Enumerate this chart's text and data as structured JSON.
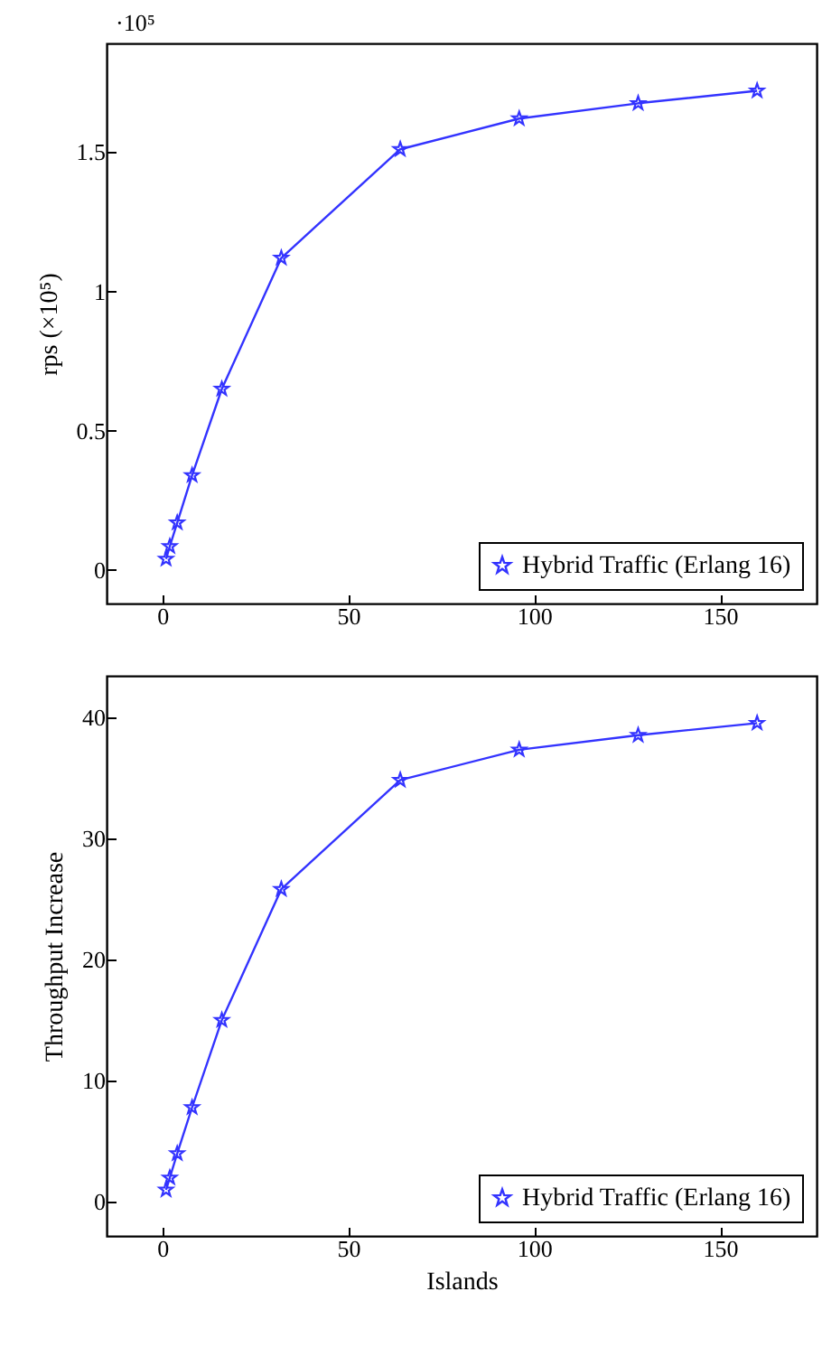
{
  "chart_data": [
    {
      "type": "line",
      "ylabel": "rps (×10⁵)",
      "annotations": [
        "·10⁵"
      ],
      "x": [
        1,
        2,
        4,
        8,
        16,
        32,
        64,
        96,
        128,
        160
      ],
      "series": [
        {
          "name": "Hybrid Traffic (Erlang 16)",
          "color": "#3333ff",
          "values": [
            0.04,
            0.085,
            0.17,
            0.34,
            0.65,
            1.12,
            1.51,
            1.62,
            1.675,
            1.72
          ]
        }
      ],
      "xlim": [
        -15,
        176
      ],
      "xticks": [
        0,
        50,
        100,
        150
      ],
      "ylim": [
        -0.12,
        1.89
      ],
      "yticks": [
        0,
        0.5,
        1,
        1.5
      ],
      "marker": "star",
      "legend": "bottom right",
      "grid": false
    },
    {
      "type": "line",
      "xlabel": "Islands",
      "ylabel": "Throughput Increase",
      "x": [
        1,
        2,
        4,
        8,
        16,
        32,
        64,
        96,
        128,
        160
      ],
      "series": [
        {
          "name": "Hybrid Traffic (Erlang 16)",
          "color": "#3333ff",
          "values": [
            1,
            2,
            4,
            7.8,
            15,
            25.8,
            34.8,
            37.3,
            38.5,
            39.5
          ]
        }
      ],
      "xlim": [
        -15,
        176
      ],
      "xticks": [
        0,
        50,
        100,
        150
      ],
      "ylim": [
        -2.8,
        43.4
      ],
      "yticks": [
        0,
        10,
        20,
        30,
        40
      ],
      "marker": "star",
      "legend": "bottom right",
      "grid": false
    }
  ]
}
